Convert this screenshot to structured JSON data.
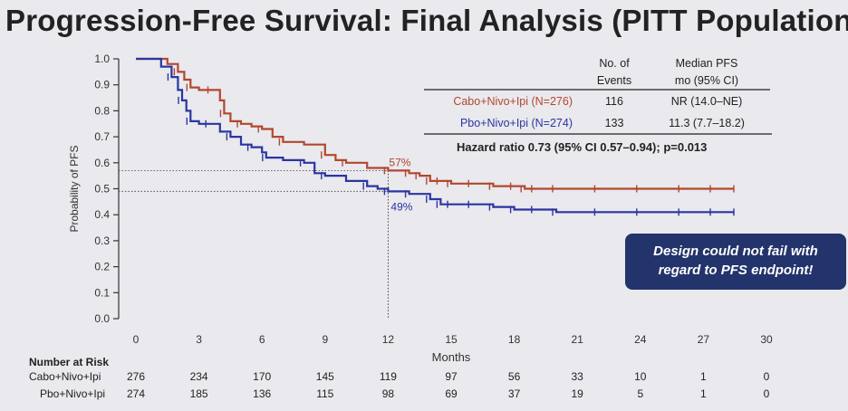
{
  "title": "Progression-Free Survival: Final Analysis (PITT Population)",
  "callout": {
    "line1": "Design  could not fail with",
    "line2": "regard to PFS endpoint!"
  },
  "colors": {
    "cabo": "#b2472e",
    "pbo": "#2b35a0",
    "callout_bg": "#23336b"
  },
  "chart_data": {
    "type": "line",
    "title": "Progression-Free Survival: Final Analysis (PITT Population)",
    "xlabel": "Months",
    "ylabel": "Probability of PFS",
    "xlim": [
      0,
      30
    ],
    "ylim": [
      0,
      1
    ],
    "xticks": [
      0,
      3,
      6,
      9,
      12,
      15,
      18,
      21,
      24,
      27,
      30
    ],
    "yticks": [
      0.0,
      0.1,
      0.2,
      0.3,
      0.4,
      0.5,
      0.6,
      0.7,
      0.8,
      0.9,
      1.0
    ],
    "ytick_labels": [
      "0.0",
      "0.1",
      "0.2",
      "0.3",
      "0.4",
      "0.5",
      "0.6",
      "0.7",
      "0.8",
      "0.9",
      "1.0"
    ],
    "series": [
      {
        "name": "Cabo+Nivo+Ipi (N=276)",
        "color": "#b2472e",
        "x": [
          0,
          1.5,
          2,
          2.3,
          2.6,
          3,
          3.6,
          4,
          4.2,
          4.5,
          5,
          5.5,
          6,
          6.5,
          7,
          8,
          9,
          9.5,
          10,
          11,
          12,
          13,
          13.5,
          14,
          14.5,
          15,
          16,
          17,
          18,
          18.5,
          19,
          20,
          22,
          24,
          26,
          27.5
        ],
        "y": [
          1.0,
          0.98,
          0.95,
          0.92,
          0.89,
          0.88,
          0.88,
          0.84,
          0.79,
          0.76,
          0.75,
          0.74,
          0.73,
          0.7,
          0.68,
          0.67,
          0.63,
          0.61,
          0.6,
          0.58,
          0.57,
          0.56,
          0.55,
          0.53,
          0.53,
          0.52,
          0.52,
          0.51,
          0.51,
          0.5,
          0.5,
          0.5,
          0.5,
          0.5,
          0.5,
          0.5
        ]
      },
      {
        "name": "Pbo+Nivo+Ipi (N=274)",
        "color": "#2b35a0",
        "x": [
          0,
          1.2,
          1.7,
          2,
          2.2,
          2.4,
          2.6,
          3,
          3.5,
          4,
          4.5,
          5,
          5.5,
          6,
          6.2,
          7,
          8,
          8.5,
          9,
          10,
          11,
          11.5,
          12,
          13,
          14,
          14.5,
          15,
          16,
          17,
          18,
          19,
          20,
          22,
          24,
          26,
          27.5
        ],
        "y": [
          1.0,
          0.97,
          0.93,
          0.88,
          0.84,
          0.8,
          0.76,
          0.75,
          0.75,
          0.72,
          0.7,
          0.67,
          0.66,
          0.64,
          0.62,
          0.61,
          0.6,
          0.56,
          0.55,
          0.53,
          0.51,
          0.5,
          0.49,
          0.48,
          0.46,
          0.44,
          0.44,
          0.44,
          0.43,
          0.42,
          0.42,
          0.41,
          0.41,
          0.41,
          0.41,
          0.41
        ]
      }
    ],
    "annotations": [
      {
        "text": "57%",
        "x": 12,
        "y": 0.57
      },
      {
        "text": "49%",
        "x": 12,
        "y": 0.49
      }
    ]
  },
  "stats_table": {
    "headers": [
      [
        "No. of",
        "Events"
      ],
      [
        "Median PFS",
        "mo (95% CI)"
      ]
    ],
    "rows": [
      {
        "label": "Cabo+Nivo+Ipi (N=276)",
        "events": "116",
        "median": "NR (14.0–NE)"
      },
      {
        "label": "Pbo+Nivo+Ipi (N=274)",
        "events": "133",
        "median": "11.3 (7.7–18.2)"
      }
    ],
    "hazard_ratio": "Hazard ratio 0.73 (95% CI 0.57–0.94); p=0.013"
  },
  "risk_table": {
    "title": "Number at Risk",
    "rows": [
      {
        "label": "Cabo+Nivo+Ipi",
        "values": [
          "276",
          "234",
          "170",
          "145",
          "119",
          "97",
          "56",
          "33",
          "10",
          "1",
          "0"
        ]
      },
      {
        "label": "Pbo+Nivo+Ipi",
        "values": [
          "274",
          "185",
          "136",
          "115",
          "98",
          "69",
          "37",
          "19",
          "5",
          "1",
          "0"
        ]
      }
    ]
  }
}
